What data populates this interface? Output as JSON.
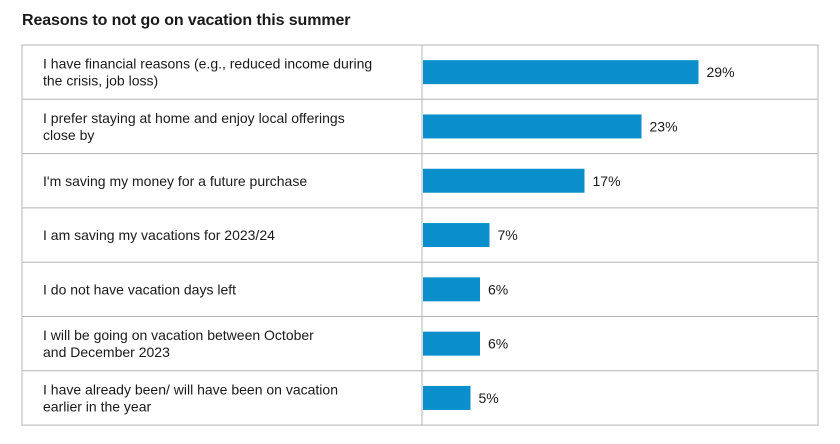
{
  "chart_data": {
    "type": "bar",
    "orientation": "horizontal",
    "title": "Reasons to not go on vacation this summer",
    "categories": [
      "I have financial reasons (e.g., reduced income during the crisis, job loss)",
      "I prefer staying at home and enjoy local offerings close by",
      "I'm saving my money for a future purchase",
      "I am saving my vacations for 2023/24",
      "I do not have vacation days left",
      "I will be going on vacation between October and December 2023",
      "I have already been/ will have been on vacation earlier in the year"
    ],
    "category_lines": [
      [
        "I have financial reasons (e.g., reduced income during",
        "the crisis, job loss)"
      ],
      [
        "I prefer staying at home and enjoy local offerings",
        "close by"
      ],
      [
        "I'm saving my money for a future purchase"
      ],
      [
        "I am saving my vacations for 2023/24"
      ],
      [
        "I do not have vacation days left"
      ],
      [
        "I will be going on vacation between October",
        "and December 2023"
      ],
      [
        "I have already been/ will have been on vacation",
        "earlier in the year"
      ]
    ],
    "values": [
      29,
      23,
      17,
      7,
      6,
      6,
      5
    ],
    "value_labels": [
      "29%",
      "23%",
      "17%",
      "7%",
      "6%",
      "6%",
      "5%"
    ],
    "unit": "%",
    "bar_color": "#0b8fcc",
    "border_color": "#b5b5b5",
    "grid": false,
    "legend": "none"
  }
}
